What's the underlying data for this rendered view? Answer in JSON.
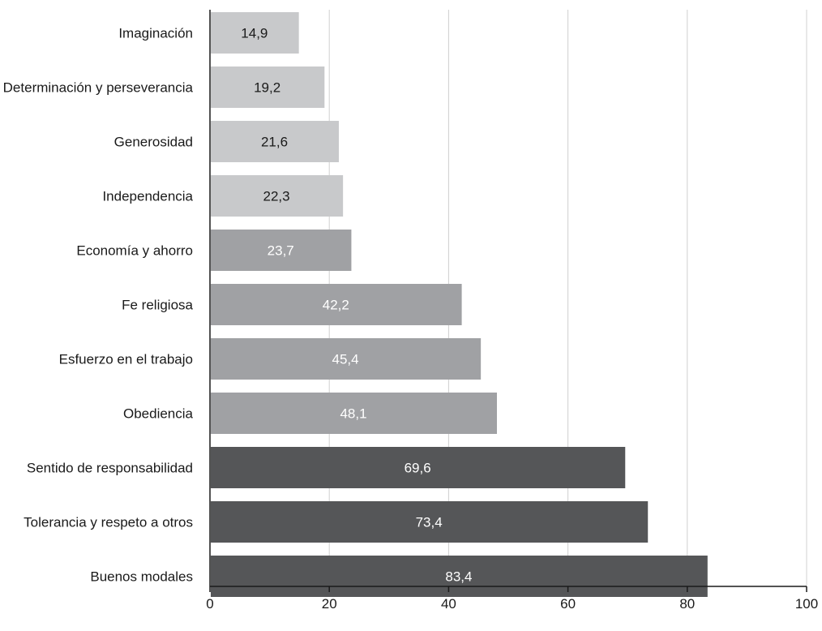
{
  "chart_data": {
    "type": "bar",
    "orientation": "horizontal",
    "categories": [
      "Imaginación",
      "Determinación y perseverancia",
      "Generosidad",
      "Independencia",
      "Economía y ahorro",
      "Fe religiosa",
      "Esfuerzo en el trabajo",
      "Obediencia",
      "Sentido de responsabilidad",
      "Tolerancia y respeto a otros",
      "Buenos modales"
    ],
    "values": [
      14.9,
      19.2,
      21.6,
      22.3,
      23.7,
      42.2,
      45.4,
      48.1,
      69.6,
      73.4,
      83.4
    ],
    "data_labels": [
      "14,9",
      "19,2",
      "21,6",
      "22,3",
      "23,7",
      "42,2",
      "45,4",
      "48,1",
      "69,6",
      "73,4",
      "83,4"
    ],
    "bar_color_groups": [
      "light",
      "light",
      "light",
      "light",
      "medium",
      "medium",
      "medium",
      "medium",
      "dark",
      "dark",
      "dark"
    ],
    "colors": {
      "light": "#c8c9cb",
      "medium": "#a0a1a4",
      "dark": "#555658",
      "label_on_light": "#1a1a1a",
      "label_on_medium": "#ffffff",
      "label_on_dark": "#ffffff"
    },
    "xlim": [
      0,
      100
    ],
    "xticks": [
      0,
      20,
      40,
      60,
      80,
      100
    ],
    "xtick_labels": [
      "0",
      "20",
      "40",
      "60",
      "80",
      "100"
    ],
    "grid": "vertical",
    "legend": "none",
    "title": "",
    "xlabel": "",
    "ylabel": ""
  }
}
